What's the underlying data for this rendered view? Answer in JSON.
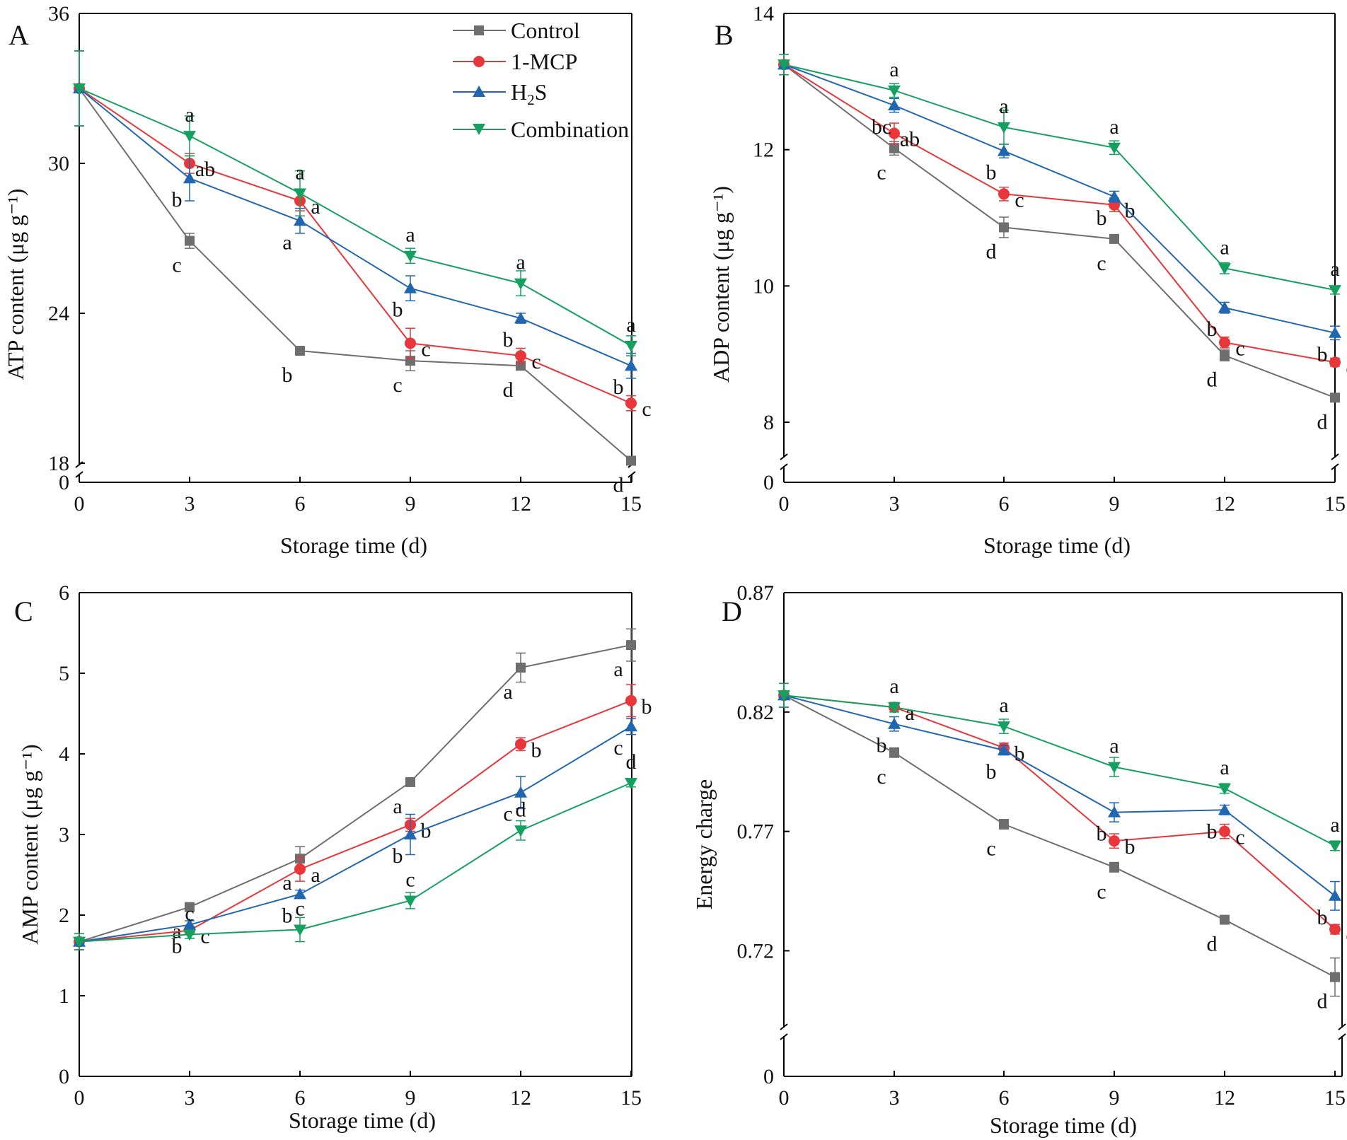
{
  "figure": {
    "colors": {
      "Control": "#6e6e6e",
      "1-MCP": "#e8363b",
      "H2S": "#2166b0",
      "Combination": "#16a060",
      "axis": "#000000"
    },
    "legend": {
      "entries": [
        {
          "series": "Control",
          "label": "Control",
          "marker": "square"
        },
        {
          "series": "1-MCP",
          "label": "1-MCP",
          "marker": "circle"
        },
        {
          "series": "H2S",
          "label": "H2S",
          "marker": "triangle-up"
        },
        {
          "series": "Combination",
          "label": "Combination",
          "marker": "triangle-down"
        }
      ]
    }
  },
  "chart_data": [
    {
      "id": "A",
      "panel_label": "A",
      "type": "line",
      "xlabel": "Storage time (d)",
      "ylabel": "ATP content (μg g⁻¹)",
      "x": [
        0,
        3,
        6,
        9,
        12,
        15
      ],
      "xticks": [
        "0",
        "3",
        "6",
        "9",
        "12",
        "15"
      ],
      "ylim": [
        18,
        36
      ],
      "yticks": [
        "18",
        "24",
        "30",
        "36"
      ],
      "axis_break": true,
      "break_label": "0",
      "series": [
        {
          "name": "Control",
          "marker": "square",
          "values": [
            33,
            26.9,
            22.5,
            22.1,
            21.9,
            18.1
          ],
          "errors": [
            1.5,
            0.3,
            0.15,
            0.4,
            0.15,
            0.15
          ],
          "letters": [
            "",
            "c",
            "b",
            "c",
            "d",
            "d"
          ]
        },
        {
          "name": "1-MCP",
          "marker": "circle",
          "values": [
            33,
            30.0,
            28.5,
            22.8,
            22.3,
            20.4
          ],
          "errors": [
            1.5,
            0.4,
            0.4,
            0.6,
            0.3,
            0.3
          ],
          "letters": [
            "",
            "ab",
            "a",
            "c",
            "c",
            "c"
          ]
        },
        {
          "name": "H2S",
          "marker": "triangle-up",
          "values": [
            33,
            29.4,
            27.7,
            25.0,
            23.8,
            21.9
          ],
          "errors": [
            1.5,
            0.9,
            0.5,
            0.5,
            0.2,
            0.5
          ],
          "letters": [
            "",
            "b",
            "a",
            "b",
            "b",
            "b"
          ]
        },
        {
          "name": "Combination",
          "marker": "triangle-down",
          "values": [
            33,
            31.1,
            28.8,
            26.3,
            25.2,
            22.7
          ],
          "errors": [
            1.5,
            0.8,
            0.9,
            0.3,
            0.5,
            0.4
          ],
          "letters": [
            "",
            "a",
            "a",
            "a",
            "a",
            "a"
          ]
        }
      ]
    },
    {
      "id": "B",
      "panel_label": "B",
      "type": "line",
      "xlabel": "Storage time (d)",
      "ylabel": "ADP content (μg g⁻¹)",
      "x": [
        0,
        3,
        6,
        9,
        12,
        15
      ],
      "xticks": [
        "0",
        "3",
        "6",
        "9",
        "12",
        "15"
      ],
      "ylim": [
        8,
        14
      ],
      "yticks": [
        "8",
        "10",
        "12",
        "14"
      ],
      "axis_break": true,
      "break_label": "0",
      "series": [
        {
          "name": "Control",
          "marker": "square",
          "values": [
            13.25,
            12.02,
            10.86,
            10.69,
            8.98,
            8.36
          ],
          "errors": [
            0.15,
            0.1,
            0.15,
            0.05,
            0.08,
            0.05
          ],
          "letters": [
            "",
            "c",
            "d",
            "c",
            "d",
            "d"
          ]
        },
        {
          "name": "1-MCP",
          "marker": "circle",
          "values": [
            13.25,
            12.24,
            11.35,
            11.19,
            9.17,
            8.88
          ],
          "errors": [
            0.15,
            0.15,
            0.1,
            0.1,
            0.08,
            0.06
          ],
          "letters": [
            "",
            "ab",
            "c",
            "b",
            "c",
            "c"
          ]
        },
        {
          "name": "H2S",
          "marker": "triangle-up",
          "values": [
            13.25,
            12.65,
            11.98,
            11.31,
            9.68,
            9.31
          ],
          "errors": [
            0.15,
            0.1,
            0.1,
            0.08,
            0.08,
            0.1
          ],
          "letters": [
            "",
            "bc",
            "b",
            "b",
            "b",
            "b"
          ]
        },
        {
          "name": "Combination",
          "marker": "triangle-down",
          "values": [
            13.25,
            12.87,
            12.33,
            12.03,
            10.26,
            9.94
          ],
          "errors": [
            0.15,
            0.1,
            0.25,
            0.1,
            0.08,
            0.06
          ],
          "letters": [
            "",
            "a",
            "a",
            "a",
            "a",
            "a"
          ]
        }
      ]
    },
    {
      "id": "C",
      "panel_label": "C",
      "type": "line",
      "xlabel": "Storage time (d)",
      "ylabel": "AMP content (μg g⁻¹)",
      "x": [
        0,
        3,
        6,
        9,
        12,
        15
      ],
      "xticks": [
        "0",
        "3",
        "6",
        "9",
        "12",
        "15"
      ],
      "ylim": [
        0,
        6
      ],
      "yticks": [
        "0",
        "1",
        "2",
        "3",
        "4",
        "5",
        "6"
      ],
      "axis_break": false,
      "series": [
        {
          "name": "Control",
          "marker": "square",
          "values": [
            1.67,
            2.1,
            2.7,
            3.65,
            5.07,
            5.35
          ],
          "errors": [
            0.1,
            0.05,
            0.15,
            0.05,
            0.18,
            0.2
          ],
          "letters": [
            "",
            "a",
            "a",
            "a",
            "a",
            "a"
          ]
        },
        {
          "name": "1-MCP",
          "marker": "circle",
          "values": [
            1.67,
            1.81,
            2.57,
            3.12,
            4.12,
            4.66
          ],
          "errors": [
            0.1,
            0.05,
            0.15,
            0.08,
            0.08,
            0.2
          ],
          "letters": [
            "",
            "c",
            "a",
            "b",
            "b",
            "b"
          ]
        },
        {
          "name": "H2S",
          "marker": "triangle-up",
          "values": [
            1.67,
            1.88,
            2.26,
            3.0,
            3.52,
            4.34
          ],
          "errors": [
            0.1,
            0.05,
            0.05,
            0.25,
            0.2,
            0.1
          ],
          "letters": [
            "",
            "b",
            "b",
            "b",
            "c",
            "c"
          ]
        },
        {
          "name": "Combination",
          "marker": "triangle-down",
          "values": [
            1.67,
            1.76,
            1.82,
            2.18,
            3.05,
            3.64
          ],
          "errors": [
            0.1,
            0.05,
            0.15,
            0.1,
            0.12,
            0.05
          ],
          "letters": [
            "",
            "c",
            "c",
            "c",
            "d",
            "d"
          ]
        }
      ]
    },
    {
      "id": "D",
      "panel_label": "D",
      "type": "line",
      "xlabel": "Storage time (d)",
      "ylabel": "Energy charge",
      "x": [
        0,
        3,
        6,
        9,
        12,
        15
      ],
      "xticks": [
        "0",
        "3",
        "6",
        "9",
        "12",
        "15"
      ],
      "ylim": [
        0.7,
        0.87
      ],
      "yticks": [
        "0.72",
        "0.77",
        "0.82",
        "0.87"
      ],
      "axis_break": true,
      "break_label": "0",
      "series": [
        {
          "name": "Control",
          "marker": "square",
          "values": [
            0.827,
            0.803,
            0.773,
            0.755,
            0.733,
            0.709
          ],
          "errors": [
            0.005,
            0.002,
            0.002,
            0.002,
            0.001,
            0.008
          ],
          "letters": [
            "",
            "c",
            "c",
            "c",
            "d",
            "d"
          ]
        },
        {
          "name": "1-MCP",
          "marker": "circle",
          "values": [
            0.827,
            0.822,
            0.805,
            0.766,
            0.77,
            0.729
          ],
          "errors": [
            0.005,
            0.002,
            0.002,
            0.003,
            0.003,
            0.002
          ],
          "letters": [
            "",
            "a",
            "b",
            "b",
            "c",
            "c"
          ]
        },
        {
          "name": "H2S",
          "marker": "triangle-up",
          "values": [
            0.827,
            0.815,
            0.804,
            0.778,
            0.779,
            0.743
          ],
          "errors": [
            0.005,
            0.003,
            0.002,
            0.004,
            0.002,
            0.006
          ],
          "letters": [
            "",
            "b",
            "b",
            "b",
            "b",
            "b"
          ]
        },
        {
          "name": "Combination",
          "marker": "triangle-down",
          "values": [
            0.827,
            0.822,
            0.814,
            0.797,
            0.788,
            0.764
          ],
          "errors": [
            0.005,
            0.002,
            0.003,
            0.004,
            0.002,
            0.002
          ],
          "letters": [
            "",
            "a",
            "a",
            "a",
            "a",
            "a"
          ]
        }
      ]
    }
  ]
}
